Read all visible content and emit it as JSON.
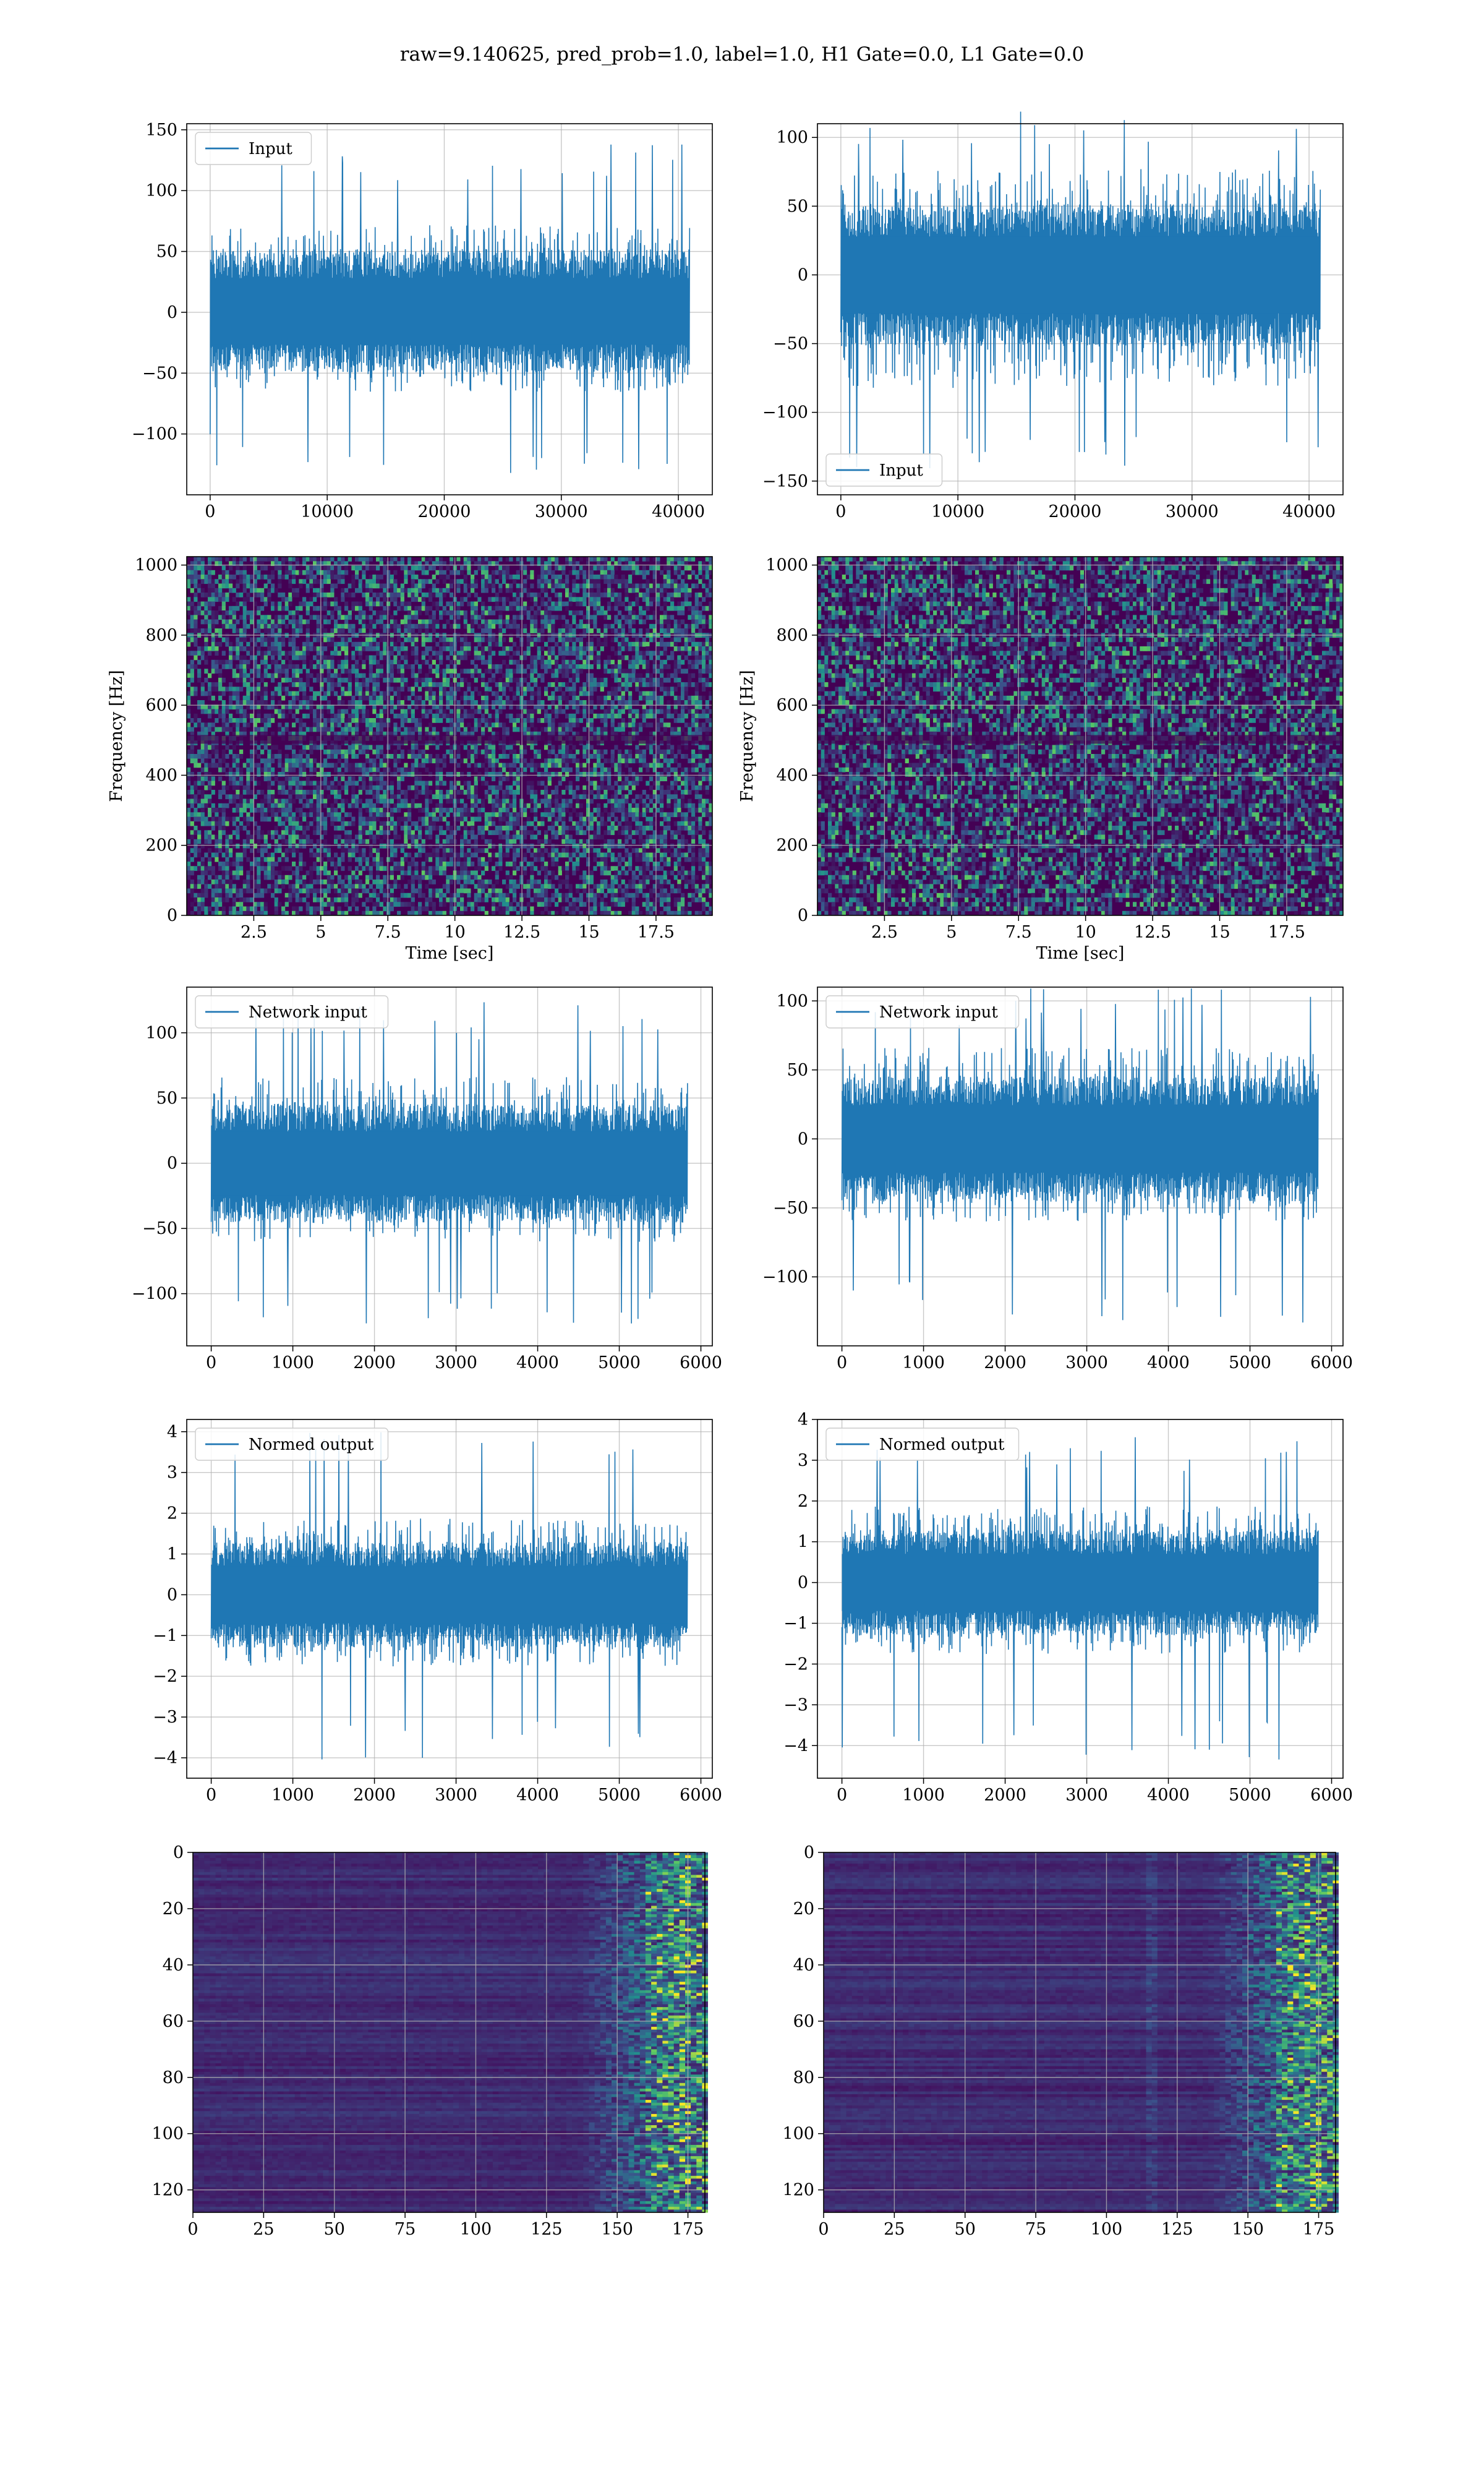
{
  "figure_title": "raw=9.140625, pred_prob=1.0, label=1.0, H1 Gate=0.0, L1 Gate=0.0",
  "colors": {
    "line": "#1f77b4",
    "grid": "#b0b0b0",
    "viridis_low": "#440154",
    "viridis_mid": "#21908d",
    "viridis_high": "#fde725"
  },
  "chart_data": [
    {
      "id": "r1c1",
      "type": "line",
      "legend": "Input",
      "legend_loc": "upper-left",
      "xlim": [
        -2000,
        42900
      ],
      "ylim": [
        -150,
        155
      ],
      "xticks": [
        0,
        10000,
        20000,
        30000,
        40000
      ],
      "yticks": [
        -100,
        -50,
        0,
        50,
        100,
        150
      ],
      "x_range": [
        0,
        40960
      ],
      "envelope": {
        "core": [
          -38,
          40
        ],
        "typical": [
          -60,
          65
        ],
        "peak_max": 140,
        "peak_min": -133
      },
      "grid": true
    },
    {
      "id": "r1c2",
      "type": "line",
      "legend": "Input",
      "legend_loc": "lower-left",
      "xlim": [
        -2000,
        42900
      ],
      "ylim": [
        -160,
        110
      ],
      "xticks": [
        0,
        10000,
        20000,
        30000,
        40000
      ],
      "yticks": [
        -150,
        -100,
        -50,
        0,
        50,
        100
      ],
      "x_range": [
        0,
        40960
      ],
      "envelope": {
        "core": [
          -40,
          40
        ],
        "typical": [
          -75,
          70
        ],
        "peak_max": 120,
        "peak_min": -145
      },
      "grid": true
    },
    {
      "id": "r2c1",
      "type": "heatmap",
      "kind": "spectrogram",
      "xlim": [
        0,
        19.6
      ],
      "ylim": [
        0,
        1024
      ],
      "xticks": [
        2.5,
        5.0,
        7.5,
        10.0,
        12.5,
        15.0,
        17.5
      ],
      "yticks": [
        0,
        200,
        400,
        600,
        800,
        1000
      ],
      "xlabel": "Time [sec]",
      "ylabel": "Frequency [Hz]",
      "grid": true
    },
    {
      "id": "r2c2",
      "type": "heatmap",
      "kind": "spectrogram",
      "xlim": [
        0,
        19.6
      ],
      "ylim": [
        0,
        1024
      ],
      "xticks": [
        2.5,
        5.0,
        7.5,
        10.0,
        12.5,
        15.0,
        17.5
      ],
      "yticks": [
        0,
        200,
        400,
        600,
        800,
        1000
      ],
      "xlabel": "Time [sec]",
      "ylabel": "Frequency [Hz]",
      "grid": true
    },
    {
      "id": "r3c1",
      "type": "line",
      "legend": "Network input",
      "legend_loc": "upper-left",
      "xlim": [
        -300,
        6140
      ],
      "ylim": [
        -140,
        135
      ],
      "xticks": [
        0,
        1000,
        2000,
        3000,
        4000,
        5000,
        6000
      ],
      "yticks": [
        -100,
        -50,
        0,
        50,
        100
      ],
      "x_range": [
        0,
        5836
      ],
      "envelope": {
        "core": [
          -35,
          35
        ],
        "typical": [
          -55,
          60
        ],
        "peak_max": 125,
        "peak_min": -128
      },
      "grid": true
    },
    {
      "id": "r3c2",
      "type": "line",
      "legend": "Network input",
      "legend_loc": "upper-left",
      "xlim": [
        -300,
        6140
      ],
      "ylim": [
        -150,
        110
      ],
      "xticks": [
        0,
        1000,
        2000,
        3000,
        4000,
        5000,
        6000
      ],
      "yticks": [
        -100,
        -50,
        0,
        50,
        100
      ],
      "x_range": [
        0,
        5836
      ],
      "envelope": {
        "core": [
          -35,
          35
        ],
        "typical": [
          -55,
          60
        ],
        "peak_max": 110,
        "peak_min": -135
      },
      "grid": true
    },
    {
      "id": "r4c1",
      "type": "line",
      "legend": "Normed output",
      "legend_loc": "upper-left",
      "xlim": [
        -300,
        6140
      ],
      "ylim": [
        -4.5,
        4.3
      ],
      "xticks": [
        0,
        1000,
        2000,
        3000,
        4000,
        5000,
        6000
      ],
      "yticks": [
        -4,
        -3,
        -2,
        -1,
        0,
        1,
        2,
        3,
        4
      ],
      "x_range": [
        0,
        5836
      ],
      "envelope": {
        "core": [
          -1,
          1
        ],
        "typical": [
          -1.6,
          1.7
        ],
        "peak_max": 4.0,
        "peak_min": -4.1
      },
      "grid": true
    },
    {
      "id": "r4c2",
      "type": "line",
      "legend": "Normed output",
      "legend_loc": "upper-left",
      "xlim": [
        -300,
        6140
      ],
      "ylim": [
        -4.8,
        4.0
      ],
      "xticks": [
        0,
        1000,
        2000,
        3000,
        4000,
        5000,
        6000
      ],
      "yticks": [
        -4,
        -3,
        -2,
        -1,
        0,
        1,
        2,
        3,
        4
      ],
      "x_range": [
        0,
        5836
      ],
      "envelope": {
        "core": [
          -1,
          1
        ],
        "typical": [
          -1.6,
          1.7
        ],
        "peak_max": 3.6,
        "peak_min": -4.4
      },
      "grid": true
    },
    {
      "id": "r5c1",
      "type": "heatmap",
      "kind": "feature-map",
      "xlim": [
        0,
        181
      ],
      "ylim": [
        128,
        0
      ],
      "xticks": [
        0,
        25,
        50,
        75,
        100,
        125,
        150,
        175
      ],
      "yticks": [
        0,
        20,
        40,
        60,
        80,
        100,
        120
      ],
      "grid": true
    },
    {
      "id": "r5c2",
      "type": "heatmap",
      "kind": "feature-map",
      "xlim": [
        0,
        181
      ],
      "ylim": [
        128,
        0
      ],
      "xticks": [
        0,
        25,
        50,
        75,
        100,
        125,
        150,
        175
      ],
      "yticks": [
        0,
        20,
        40,
        60,
        80,
        100,
        120
      ],
      "grid": true
    }
  ]
}
